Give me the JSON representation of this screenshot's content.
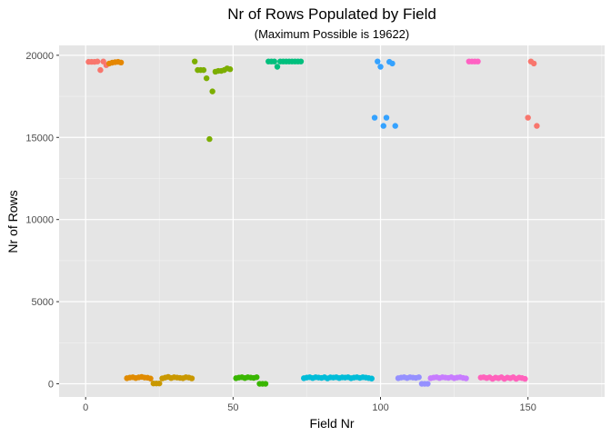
{
  "chart_data": {
    "type": "scatter",
    "title": "Nr of Rows Populated by Field",
    "subtitle": "(Maximum Possible is 19622)",
    "xlabel": "Field Nr",
    "ylabel": "Nr of Rows",
    "xlim": [
      -9,
      176
    ],
    "ylim": [
      -800,
      20600
    ],
    "xticks": [
      0,
      50,
      100,
      150
    ],
    "yticks": [
      0,
      5000,
      10000,
      15000,
      20000
    ],
    "xtick_labels": [
      "0",
      "50",
      "100",
      "150"
    ],
    "ytick_labels": [
      "0",
      "5000",
      "10000",
      "15000",
      "20000"
    ],
    "grid": true,
    "legend": "none",
    "background": "#e5e5e5",
    "groups": [
      {
        "color": "#f8766d",
        "points": [
          [
            1,
            19600
          ],
          [
            2,
            19600
          ],
          [
            3,
            19600
          ],
          [
            4,
            19620
          ],
          [
            5,
            19100
          ],
          [
            6,
            19620
          ],
          [
            7,
            19400
          ]
        ]
      },
      {
        "color": "#e58700",
        "points": [
          [
            8,
            19500
          ],
          [
            9,
            19550
          ],
          [
            10,
            19580
          ],
          [
            11,
            19600
          ],
          [
            12,
            19560
          ]
        ]
      },
      {
        "color": "#e08b00",
        "points": [
          [
            14,
            340
          ],
          [
            15,
            380
          ],
          [
            16,
            400
          ],
          [
            17,
            350
          ],
          [
            18,
            390
          ],
          [
            19,
            420
          ],
          [
            20,
            380
          ],
          [
            21,
            370
          ],
          [
            22,
            320
          ]
        ]
      },
      {
        "color": "#c99800",
        "points": [
          [
            23,
            20
          ],
          [
            24,
            20
          ],
          [
            25,
            20
          ],
          [
            26,
            330
          ],
          [
            27,
            380
          ],
          [
            28,
            420
          ],
          [
            29,
            350
          ],
          [
            30,
            400
          ],
          [
            31,
            380
          ],
          [
            32,
            360
          ],
          [
            33,
            340
          ],
          [
            34,
            400
          ],
          [
            35,
            380
          ],
          [
            36,
            330
          ]
        ]
      },
      {
        "color": "#7cae00",
        "points": [
          [
            37,
            19622
          ],
          [
            38,
            19100
          ],
          [
            39,
            19100
          ],
          [
            40,
            19100
          ],
          [
            41,
            18600
          ],
          [
            42,
            14900
          ],
          [
            43,
            17800
          ],
          [
            44,
            19000
          ],
          [
            45,
            19050
          ],
          [
            46,
            19050
          ],
          [
            47,
            19100
          ],
          [
            48,
            19200
          ],
          [
            49,
            19150
          ]
        ]
      },
      {
        "color": "#39b600",
        "points": [
          [
            51,
            340
          ],
          [
            52,
            380
          ],
          [
            53,
            400
          ],
          [
            54,
            350
          ],
          [
            55,
            400
          ],
          [
            56,
            380
          ],
          [
            57,
            360
          ],
          [
            58,
            400
          ],
          [
            59,
            0
          ],
          [
            60,
            0
          ],
          [
            61,
            0
          ]
        ]
      },
      {
        "color": "#00bf7d",
        "points": [
          [
            62,
            19622
          ],
          [
            63,
            19622
          ],
          [
            64,
            19622
          ],
          [
            65,
            19300
          ],
          [
            66,
            19622
          ],
          [
            67,
            19622
          ],
          [
            68,
            19622
          ],
          [
            69,
            19622
          ],
          [
            70,
            19622
          ],
          [
            71,
            19622
          ],
          [
            72,
            19622
          ],
          [
            73,
            19622
          ]
        ]
      },
      {
        "color": "#00bcd8",
        "points": [
          [
            74,
            340
          ],
          [
            75,
            380
          ],
          [
            76,
            400
          ],
          [
            77,
            350
          ],
          [
            78,
            400
          ],
          [
            79,
            380
          ],
          [
            80,
            360
          ],
          [
            81,
            400
          ],
          [
            82,
            330
          ],
          [
            83,
            390
          ],
          [
            84,
            380
          ],
          [
            85,
            400
          ],
          [
            86,
            350
          ],
          [
            87,
            390
          ],
          [
            88,
            380
          ],
          [
            89,
            400
          ],
          [
            90,
            340
          ],
          [
            91,
            380
          ],
          [
            92,
            400
          ],
          [
            93,
            360
          ],
          [
            94,
            400
          ],
          [
            95,
            380
          ],
          [
            96,
            350
          ],
          [
            97,
            320
          ]
        ]
      },
      {
        "color": "#35a2ff",
        "points": [
          [
            98,
            16200
          ],
          [
            99,
            19622
          ],
          [
            100,
            19300
          ],
          [
            101,
            15700
          ],
          [
            102,
            16200
          ],
          [
            103,
            19600
          ],
          [
            104,
            19500
          ],
          [
            105,
            15700
          ]
        ]
      },
      {
        "color": "#9590ff",
        "points": [
          [
            106,
            340
          ],
          [
            107,
            380
          ],
          [
            108,
            400
          ],
          [
            109,
            350
          ],
          [
            110,
            400
          ],
          [
            111,
            380
          ],
          [
            112,
            360
          ],
          [
            113,
            400
          ],
          [
            114,
            0
          ],
          [
            115,
            0
          ],
          [
            116,
            0
          ]
        ]
      },
      {
        "color": "#c77cff",
        "points": [
          [
            117,
            340
          ],
          [
            118,
            380
          ],
          [
            119,
            400
          ],
          [
            120,
            350
          ],
          [
            121,
            400
          ],
          [
            122,
            380
          ],
          [
            123,
            360
          ],
          [
            124,
            400
          ],
          [
            125,
            340
          ],
          [
            126,
            380
          ],
          [
            127,
            400
          ],
          [
            128,
            360
          ],
          [
            129,
            330
          ]
        ]
      },
      {
        "color": "#ff61c3",
        "points": [
          [
            130,
            19622
          ],
          [
            131,
            19622
          ],
          [
            132,
            19622
          ],
          [
            133,
            19622
          ]
        ]
      },
      {
        "color": "#ff62bc",
        "points": [
          [
            134,
            380
          ],
          [
            135,
            400
          ],
          [
            136,
            350
          ],
          [
            137,
            390
          ],
          [
            138,
            300
          ],
          [
            139,
            380
          ],
          [
            140,
            340
          ],
          [
            141,
            400
          ],
          [
            142,
            300
          ],
          [
            143,
            380
          ],
          [
            144,
            340
          ],
          [
            145,
            400
          ],
          [
            146,
            300
          ],
          [
            147,
            380
          ],
          [
            148,
            350
          ],
          [
            149,
            300
          ]
        ]
      },
      {
        "color": "#f8766d",
        "points": [
          [
            150,
            16200
          ],
          [
            151,
            19622
          ],
          [
            152,
            19500
          ],
          [
            153,
            15700
          ]
        ]
      }
    ]
  }
}
